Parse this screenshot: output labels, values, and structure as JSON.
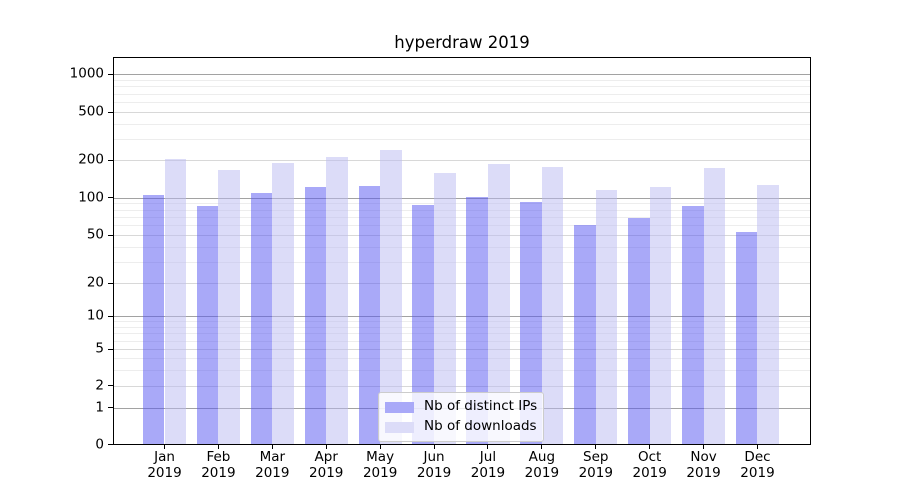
{
  "title": "hyperdraw 2019",
  "chart_data": {
    "type": "bar",
    "title": "hyperdraw 2019",
    "categories": [
      "Jan 2019",
      "Feb 2019",
      "Mar 2019",
      "Apr 2019",
      "May 2019",
      "Jun 2019",
      "Jul 2019",
      "Aug 2019",
      "Sep 2019",
      "Oct 2019",
      "Nov 2019",
      "Dec 2019"
    ],
    "series": [
      {
        "name": "Nb of distinct IPs",
        "bar_color_rgba": "rgba(84,84,242,0.5)",
        "legend_color": "#a9a9f8",
        "values": [
          106,
          85,
          109,
          121,
          125,
          88,
          102,
          92,
          60,
          68,
          85,
          53
        ]
      },
      {
        "name": "Nb of downloads",
        "bar_color_rgba": "rgba(185,185,241,0.5)",
        "legend_color": "#dcdcf8",
        "values": [
          205,
          167,
          188,
          210,
          242,
          158,
          186,
          175,
          115,
          122,
          172,
          127
        ]
      }
    ],
    "y_axis": {
      "scale": "symlog",
      "ticks": [
        0,
        1,
        2,
        5,
        10,
        20,
        50,
        100,
        200,
        500,
        1000
      ],
      "minor_ticks": [
        3,
        4,
        6,
        7,
        8,
        9,
        30,
        40,
        60,
        70,
        80,
        90,
        300,
        400,
        600,
        700,
        800,
        900
      ],
      "ylim": [
        0,
        1370
      ]
    },
    "grid": true,
    "legend": {
      "position": "lower center",
      "items": [
        "Nb of distinct IPs",
        "Nb of downloads"
      ]
    }
  }
}
